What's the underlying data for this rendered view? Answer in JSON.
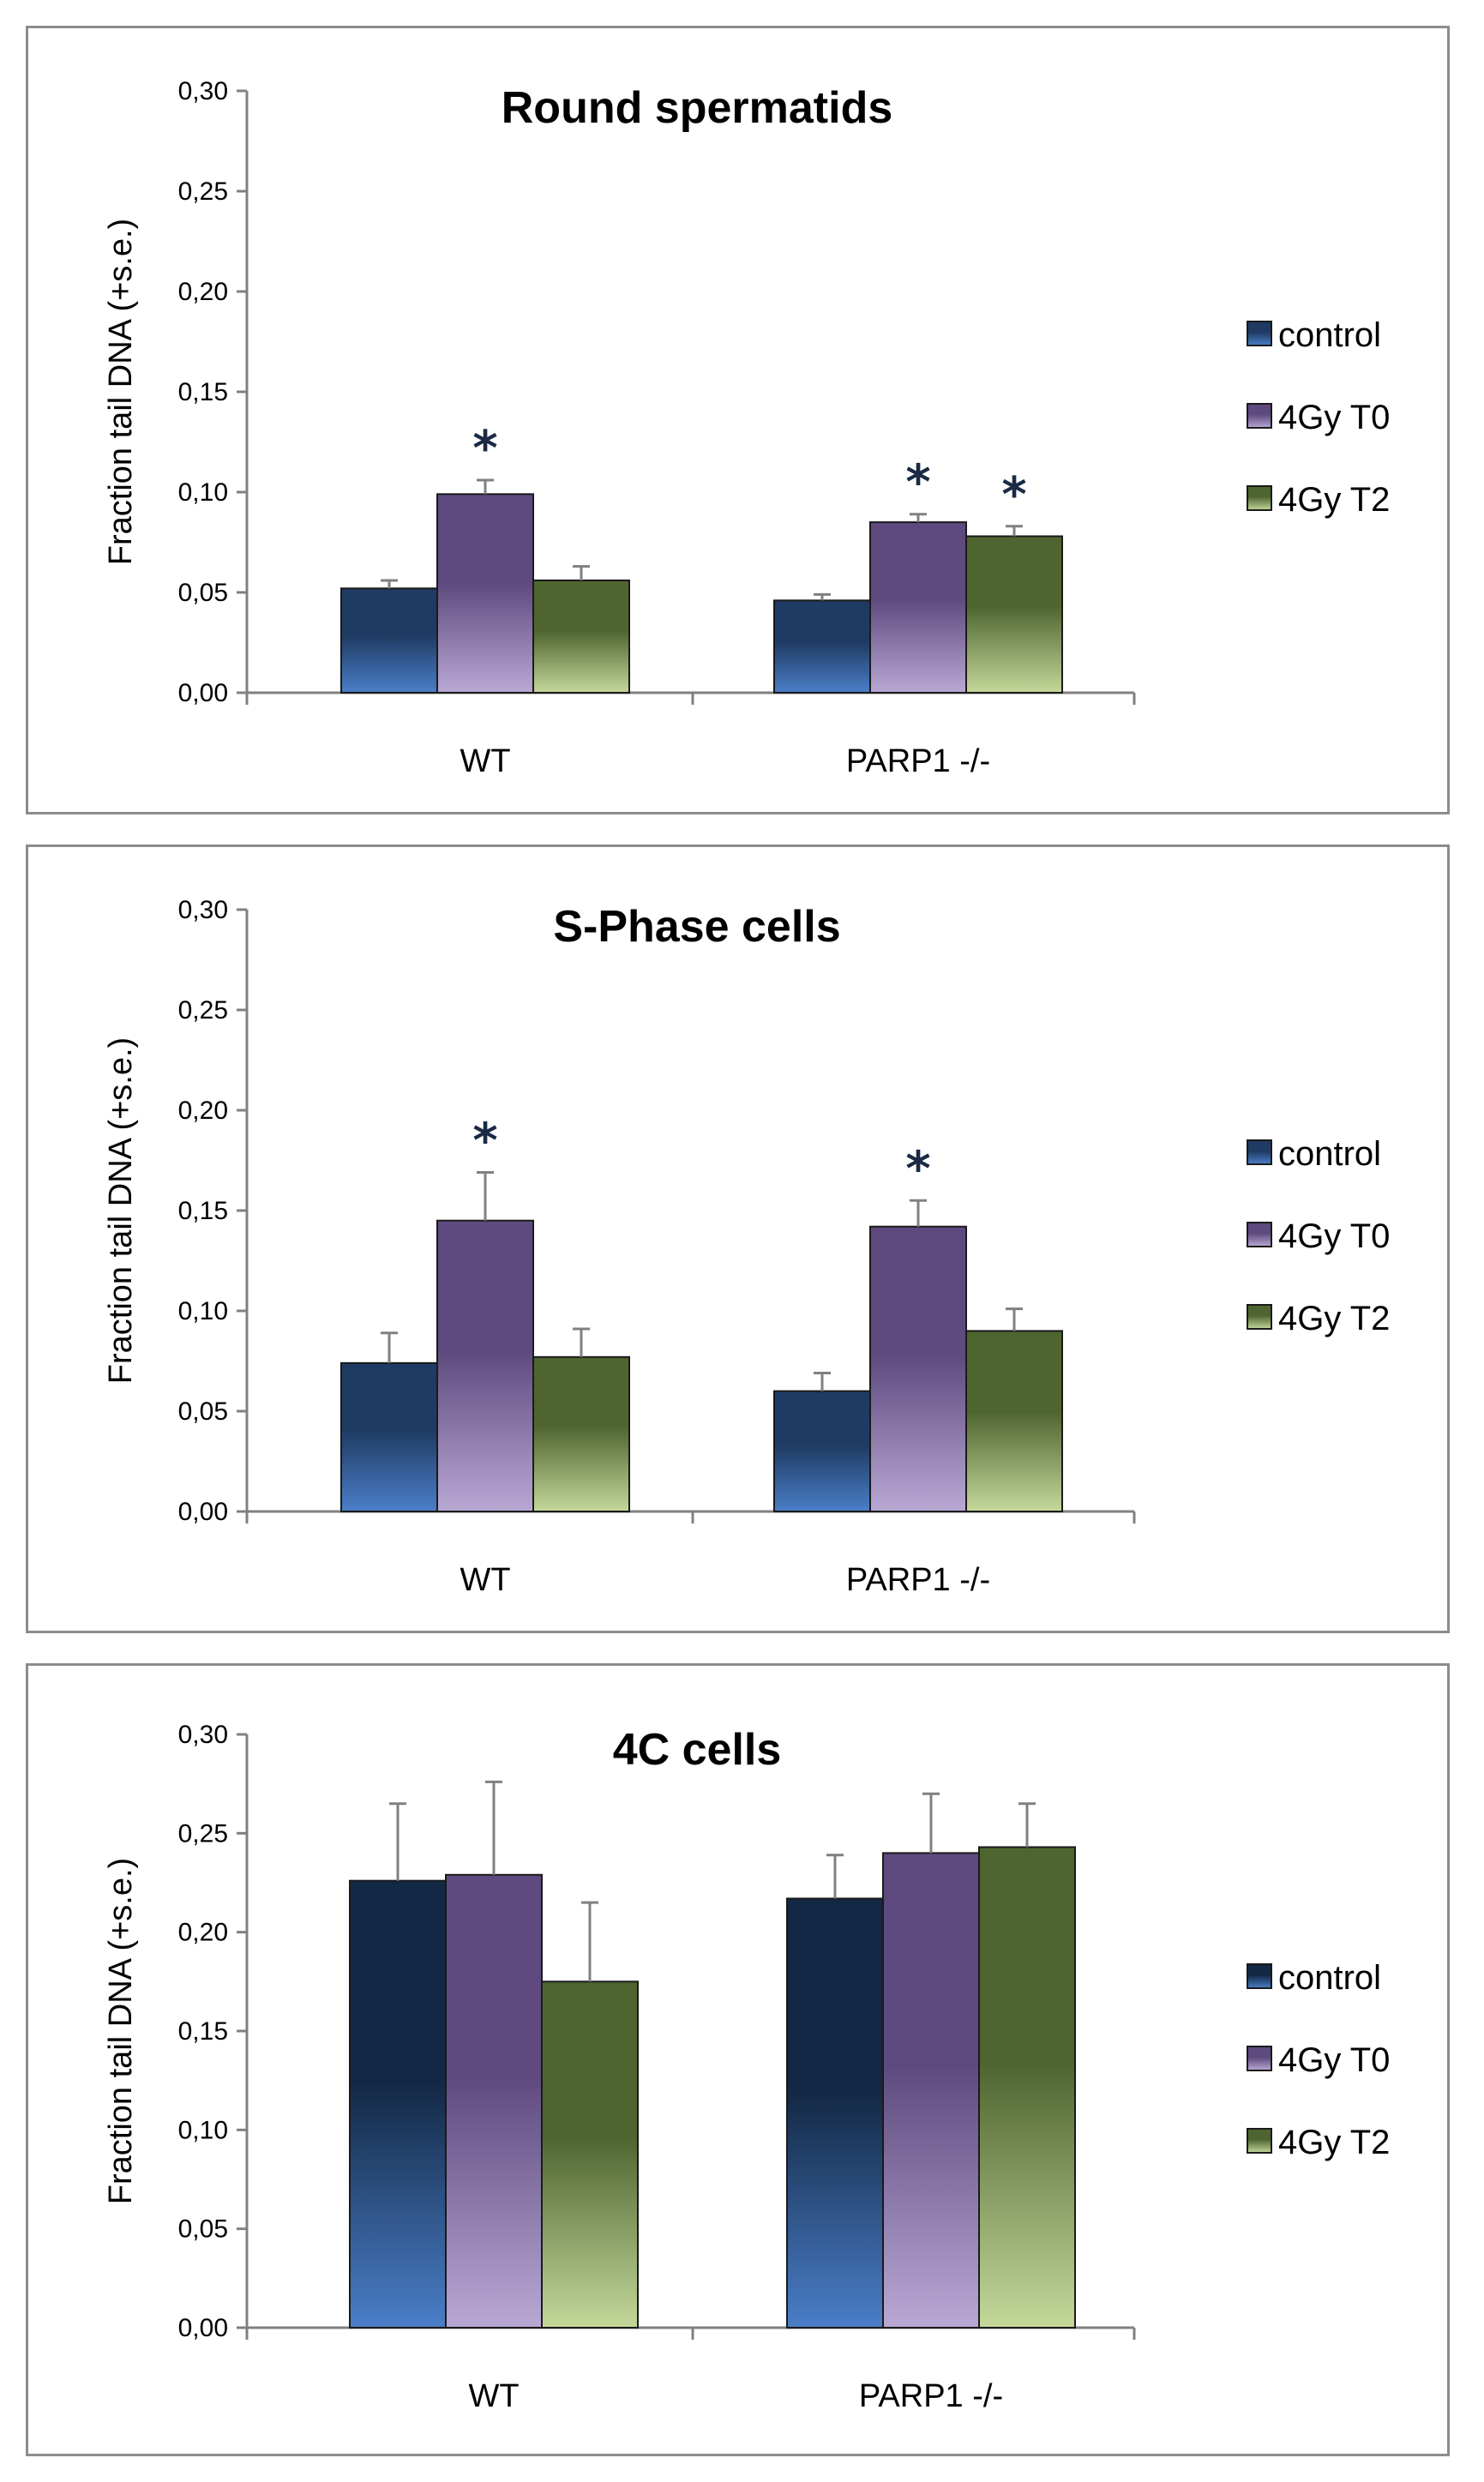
{
  "chart_data": [
    {
      "type": "bar",
      "title": "Round spermatids",
      "ylabel": "Fraction tail DNA (+s.e.)",
      "xlabel": "",
      "ylim": [
        0,
        0.3
      ],
      "yticks": [
        "0,00",
        "0,05",
        "0,10",
        "0,15",
        "0,20",
        "0,25",
        "0,30"
      ],
      "categories": [
        "WT",
        "PARP1 -/-"
      ],
      "series": [
        {
          "name": "control",
          "values": [
            0.052,
            0.046
          ],
          "errors": [
            0.004,
            0.003
          ],
          "significant": [
            false,
            false
          ],
          "color_top": "#1f3b63",
          "color_bottom": "#4a7ec8"
        },
        {
          "name": "4Gy T0",
          "values": [
            0.099,
            0.085
          ],
          "errors": [
            0.007,
            0.004
          ],
          "significant": [
            true,
            true
          ],
          "color_top": "#5e4a7e",
          "color_bottom": "#b9a8d4"
        },
        {
          "name": "4Gy T2",
          "values": [
            0.056,
            0.078
          ],
          "errors": [
            0.007,
            0.005
          ],
          "significant": [
            false,
            true
          ],
          "color_top": "#4f6530",
          "color_bottom": "#c4d89a"
        }
      ],
      "significance_mark": "*",
      "legend_position": "right"
    },
    {
      "type": "bar",
      "title": "S-Phase cells",
      "ylabel": "Fraction tail DNA (+s.e.)",
      "xlabel": "",
      "ylim": [
        0,
        0.3
      ],
      "yticks": [
        "0,00",
        "0,05",
        "0,10",
        "0,15",
        "0,20",
        "0,25",
        "0,30"
      ],
      "categories": [
        "WT",
        "PARP1 -/-"
      ],
      "series": [
        {
          "name": "control",
          "values": [
            0.074,
            0.06
          ],
          "errors": [
            0.015,
            0.009
          ],
          "significant": [
            false,
            false
          ],
          "color_top": "#1f3b63",
          "color_bottom": "#4a7ec8"
        },
        {
          "name": "4Gy T0",
          "values": [
            0.145,
            0.142
          ],
          "errors": [
            0.024,
            0.013
          ],
          "significant": [
            true,
            true
          ],
          "color_top": "#5e4a7e",
          "color_bottom": "#b9a8d4"
        },
        {
          "name": "4Gy T2",
          "values": [
            0.077,
            0.09
          ],
          "errors": [
            0.014,
            0.011
          ],
          "significant": [
            false,
            false
          ],
          "color_top": "#4f6530",
          "color_bottom": "#c4d89a"
        }
      ],
      "significance_mark": "*",
      "legend_position": "right"
    },
    {
      "type": "bar",
      "title": "4C cells",
      "ylabel": "Fraction tail DNA (+s.e.)",
      "xlabel": "",
      "ylim": [
        0,
        0.3
      ],
      "yticks": [
        "0,00",
        "0,05",
        "0,10",
        "0,15",
        "0,20",
        "0,25",
        "0,30"
      ],
      "categories": [
        "WT",
        "PARP1 -/-"
      ],
      "series": [
        {
          "name": "control",
          "values": [
            0.226,
            0.217
          ],
          "errors": [
            0.039,
            0.022
          ],
          "significant": [
            false,
            false
          ],
          "color_top": "#132844",
          "color_bottom": "#4a7ec8"
        },
        {
          "name": "4Gy T0",
          "values": [
            0.229,
            0.24
          ],
          "errors": [
            0.047,
            0.03
          ],
          "significant": [
            false,
            false
          ],
          "color_top": "#5e4a7e",
          "color_bottom": "#b9a8d4"
        },
        {
          "name": "4Gy T2",
          "values": [
            0.175,
            0.243
          ],
          "errors": [
            0.04,
            0.022
          ],
          "significant": [
            false,
            false
          ],
          "color_top": "#4f6530",
          "color_bottom": "#c4d89a"
        }
      ],
      "significance_mark": "*",
      "legend_position": "right"
    }
  ]
}
